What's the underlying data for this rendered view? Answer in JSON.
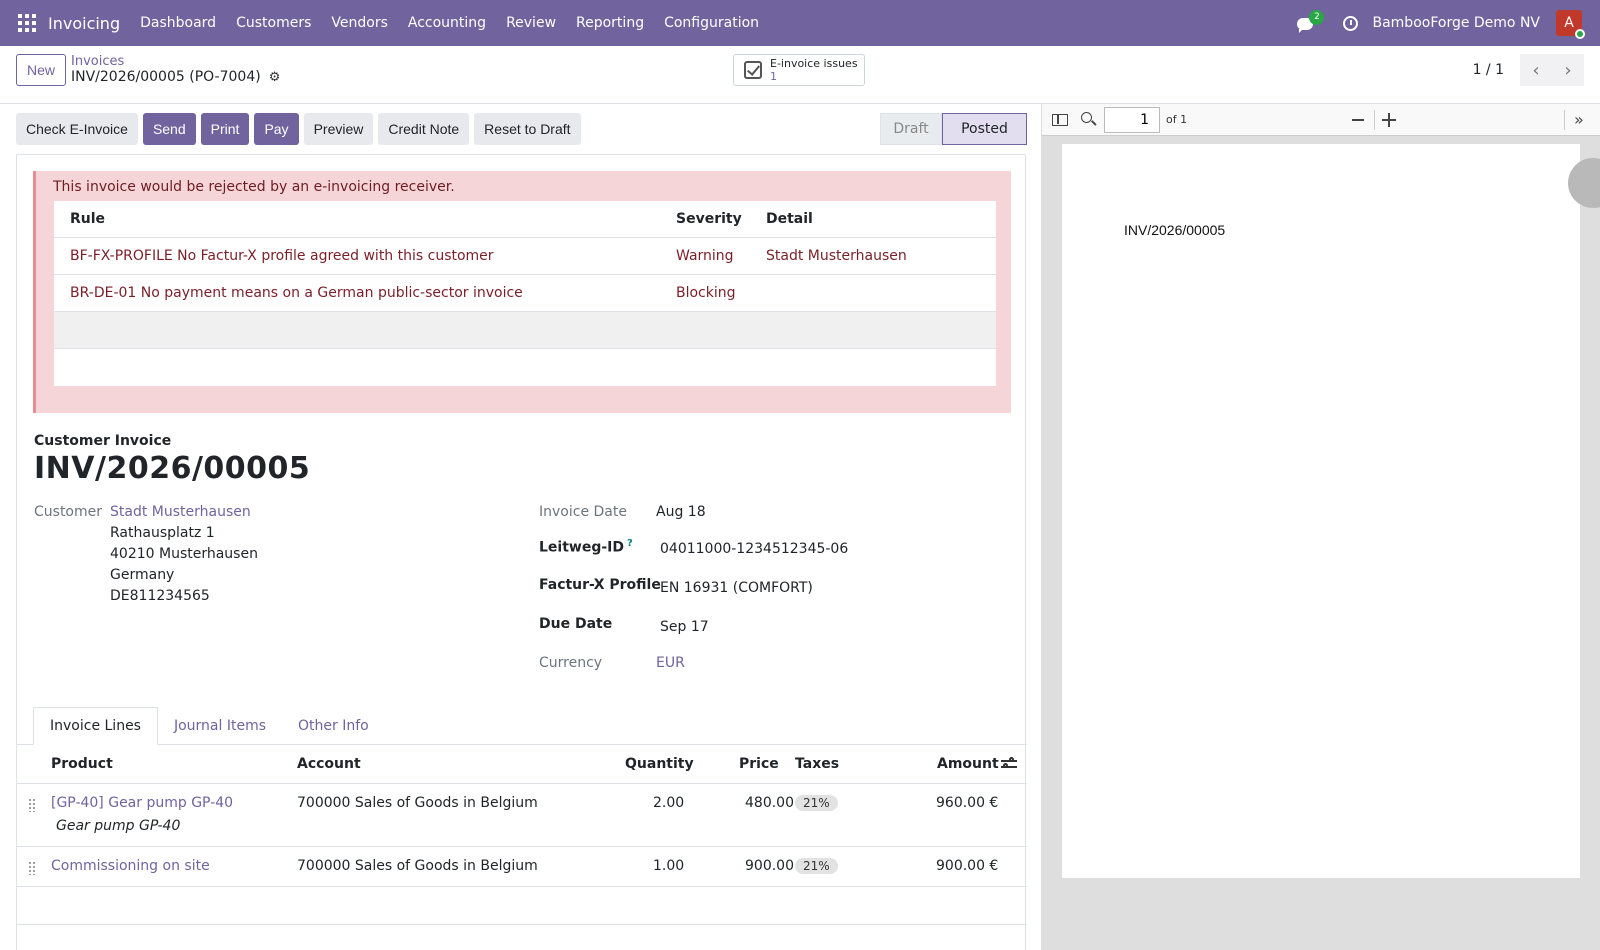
{
  "navbar": {
    "app_name": "Invoicing",
    "menu": [
      "Dashboard",
      "Customers",
      "Vendors",
      "Accounting",
      "Review",
      "Reporting",
      "Configuration"
    ],
    "chat_count": "2",
    "company": "BambooForge Demo NV",
    "avatar_letter": "A"
  },
  "control": {
    "new_label": "New",
    "breadcrumb_parent": "Invoices",
    "breadcrumb_current": "INV/2026/00005 (PO-7004)",
    "einvoice_label": "E-invoice issues",
    "einvoice_count": "1",
    "pager": "1 / 1"
  },
  "actions": {
    "check": "Check E-Invoice",
    "send": "Send",
    "print": "Print",
    "pay": "Pay",
    "preview": "Preview",
    "credit_note": "Credit Note",
    "reset": "Reset to Draft"
  },
  "status": {
    "draft": "Draft",
    "posted": "Posted"
  },
  "alert": {
    "message": "This invoice would be rejected by an e-invoicing receiver.",
    "headers": {
      "rule": "Rule",
      "severity": "Severity",
      "detail": "Detail"
    },
    "rows": [
      {
        "rule": "BF-FX-PROFILE No Factur-X profile agreed with this customer",
        "severity": "Warning",
        "detail": "Stadt Musterhausen"
      },
      {
        "rule": "BR-DE-01 No payment means on a German public-sector invoice",
        "severity": "Blocking",
        "detail": ""
      }
    ]
  },
  "form": {
    "doc_type": "Customer Invoice",
    "title": "INV/2026/00005",
    "customer_label": "Customer",
    "customer_name": "Stadt Musterhausen",
    "address": [
      "Rathausplatz 1",
      "40210 Musterhausen",
      "Germany",
      "DE811234565"
    ],
    "invoice_date_label": "Invoice Date",
    "invoice_date": "Aug 18",
    "leitweg_label": "Leitweg-ID",
    "leitweg_help": "?",
    "leitweg": "04011000-1234512345-06",
    "profile_label": "Factur-X Profile",
    "profile": "EN 16931 (COMFORT)",
    "due_label": "Due Date",
    "due": "Sep 17",
    "currency_label": "Currency",
    "currency": "EUR"
  },
  "tabs": [
    "Invoice Lines",
    "Journal Items",
    "Other Info"
  ],
  "lines": {
    "headers": {
      "product": "Product",
      "account": "Account",
      "quantity": "Quantity",
      "price": "Price",
      "taxes": "Taxes",
      "amount": "Amount"
    },
    "rows": [
      {
        "product": "[GP-40] Gear pump GP-40",
        "description": "Gear pump GP-40",
        "account": "700000 Sales of Goods in Belgium",
        "quantity": "2.00",
        "price": "480.00",
        "tax": "21%",
        "amount": "960.00 €"
      },
      {
        "product": "Commissioning on site",
        "description": "",
        "account": "700000 Sales of Goods in Belgium",
        "quantity": "1.00",
        "price": "900.00",
        "tax": "21%",
        "amount": "900.00 €"
      }
    ]
  },
  "pdf": {
    "page_value": "1",
    "page_of": "of 1",
    "text": "INV/2026/00005"
  }
}
